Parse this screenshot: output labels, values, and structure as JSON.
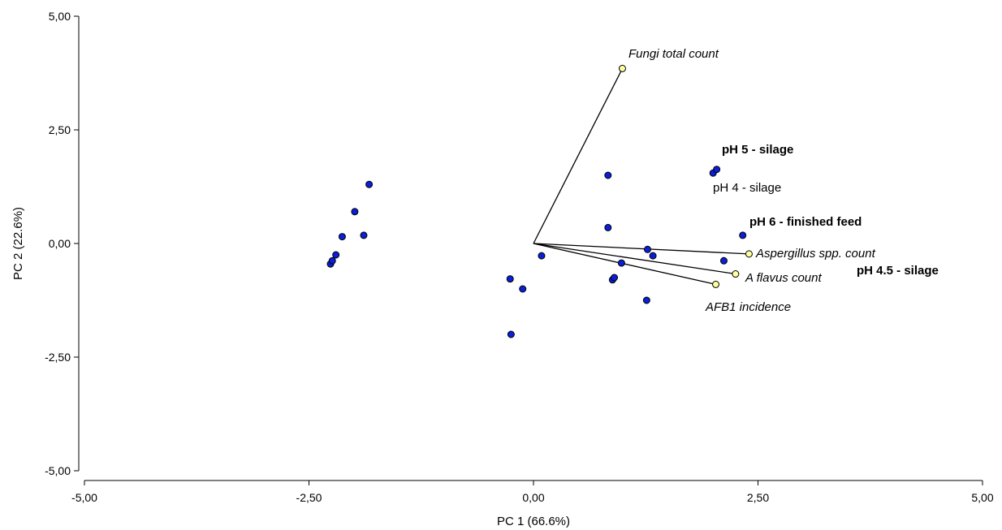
{
  "chart_data": {
    "type": "scatter",
    "subtype": "biplot",
    "title": "",
    "xlabel": "PC 1 (66.6%)",
    "ylabel": "PC 2 (22.6%)",
    "xlim": [
      -5,
      5
    ],
    "ylim": [
      -5,
      5
    ],
    "xticks": [
      -5,
      -2.5,
      0,
      2.5,
      5
    ],
    "yticks": [
      -5,
      -2.5,
      0,
      2.5,
      5
    ],
    "xtick_labels": [
      "-5,00",
      "-2,50",
      "0,00",
      "2,50",
      "5,00"
    ],
    "ytick_labels": [
      "-5,00",
      "-2,50",
      "0,00",
      "2,50",
      "5,00"
    ],
    "grid": false,
    "point_color": "#0a1fd6",
    "loading_color": "#ffffa0",
    "scores": [
      {
        "x": -2.26,
        "y": -0.45
      },
      {
        "x": -2.24,
        "y": -0.38
      },
      {
        "x": -2.2,
        "y": -0.25
      },
      {
        "x": -2.13,
        "y": 0.15
      },
      {
        "x": -1.99,
        "y": 0.7
      },
      {
        "x": -1.89,
        "y": 0.18
      },
      {
        "x": -1.83,
        "y": 1.3
      },
      {
        "x": -0.26,
        "y": -0.78
      },
      {
        "x": -0.25,
        "y": -2.0
      },
      {
        "x": -0.12,
        "y": -1.0
      },
      {
        "x": 0.09,
        "y": -0.27
      },
      {
        "x": 0.83,
        "y": 1.5
      },
      {
        "x": 0.83,
        "y": 0.35
      },
      {
        "x": 0.88,
        "y": -0.8
      },
      {
        "x": 0.9,
        "y": -0.75
      },
      {
        "x": 0.98,
        "y": -0.43
      },
      {
        "x": 1.26,
        "y": -1.25
      },
      {
        "x": 1.27,
        "y": -0.13
      },
      {
        "x": 1.33,
        "y": -0.27
      },
      {
        "x": 2.0,
        "y": 1.55
      },
      {
        "x": 2.04,
        "y": 1.63
      },
      {
        "x": 2.12,
        "y": -0.38
      },
      {
        "x": 2.33,
        "y": 0.18
      }
    ],
    "loadings": [
      {
        "name": "Fungi total count",
        "x": 0.99,
        "y": 3.85
      },
      {
        "name": "Aspergillus spp. count",
        "x": 2.4,
        "y": -0.23
      },
      {
        "name": "A flavus count",
        "x": 2.25,
        "y": -0.67
      },
      {
        "name": "AFB1 incidence",
        "x": 2.03,
        "y": -0.9
      }
    ],
    "group_labels": [
      {
        "text": "pH 5 - silage",
        "bold": true
      },
      {
        "text": "pH 4 - silage",
        "bold": false
      },
      {
        "text": "pH 6 - finished feed",
        "bold": true
      },
      {
        "text": "pH 4.5 - silage",
        "bold": true
      }
    ]
  }
}
